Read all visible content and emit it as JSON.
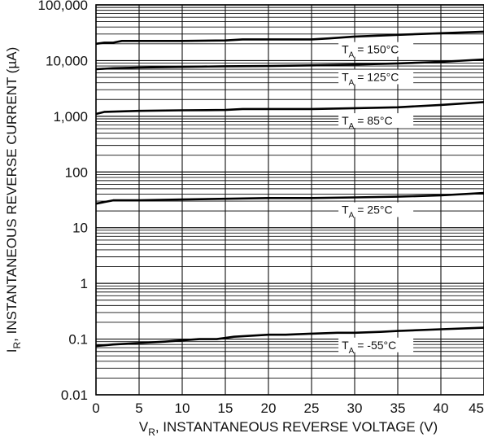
{
  "chart_data": {
    "type": "line",
    "title": "",
    "xlabel": {
      "main": "V",
      "sub": "R",
      "rest": ", INSTANTANEOUS REVERSE VOLTAGE (V)"
    },
    "ylabel": {
      "main": "I",
      "sub": "R",
      "rest": ", INSTANTANEOUS REVERSE CURRENT (µA)"
    },
    "xlim": [
      0,
      45
    ],
    "ylim": [
      0.01,
      100000
    ],
    "yscale": "log",
    "grid": true,
    "x_ticks": [
      0,
      5,
      10,
      15,
      20,
      25,
      30,
      35,
      40,
      45
    ],
    "x_tick_labels": [
      "0",
      "5",
      "10",
      "15",
      "20",
      "25",
      "30",
      "35",
      "40",
      "45"
    ],
    "y_ticks": [
      0.01,
      0.1,
      1,
      10,
      100,
      1000,
      10000,
      100000
    ],
    "y_tick_labels": [
      "0.01",
      "0.1",
      "1",
      "10",
      "100",
      "1,000",
      "10,000",
      "100,000"
    ],
    "series": [
      {
        "name": "T_A = 150°C",
        "label": {
          "pre": "T",
          "sub": "A",
          "post": " = 150°C"
        },
        "x": [
          0,
          1,
          2,
          3,
          5,
          10,
          15,
          17,
          20,
          25,
          27,
          30,
          35,
          40,
          45
        ],
        "y": [
          20000,
          21000,
          21000,
          22500,
          22500,
          22500,
          23000,
          24000,
          24000,
          24000,
          25000,
          27000,
          29000,
          31000,
          33000
        ]
      },
      {
        "name": "T_A = 125°C",
        "label": {
          "pre": "T",
          "sub": "A",
          "post": " = 125°C"
        },
        "x": [
          0,
          2,
          5,
          10,
          15,
          20,
          25,
          30,
          35,
          40,
          45
        ],
        "y": [
          7000,
          7300,
          7500,
          7700,
          7900,
          8000,
          8200,
          8500,
          8900,
          9500,
          10500
        ]
      },
      {
        "name": "T_A = 85°C",
        "label": {
          "pre": "T",
          "sub": "A",
          "post": " = 85°C"
        },
        "x": [
          0,
          1,
          5,
          10,
          15,
          17,
          20,
          25,
          30,
          35,
          40,
          45
        ],
        "y": [
          1100,
          1200,
          1250,
          1280,
          1300,
          1350,
          1350,
          1350,
          1400,
          1450,
          1600,
          1800
        ]
      },
      {
        "name": "T_A = 25°C",
        "label": {
          "pre": "T",
          "sub": "A",
          "post": " = 25°C"
        },
        "x": [
          0,
          2,
          5,
          10,
          15,
          20,
          25,
          30,
          35,
          40,
          45
        ],
        "y": [
          27,
          31,
          31,
          32,
          33,
          34,
          34,
          35,
          36,
          38,
          42
        ]
      },
      {
        "name": "T_A = -55°C",
        "label": {
          "pre": "T",
          "sub": "A",
          "post": " = -55°C"
        },
        "x": [
          0,
          2,
          5,
          8,
          10,
          12,
          14,
          16,
          18,
          20,
          22,
          25,
          28,
          30,
          33,
          35,
          40,
          45
        ],
        "y": [
          0.075,
          0.08,
          0.085,
          0.09,
          0.095,
          0.1,
          0.1,
          0.11,
          0.115,
          0.12,
          0.12,
          0.125,
          0.13,
          0.13,
          0.135,
          0.14,
          0.15,
          0.16
        ]
      }
    ]
  }
}
